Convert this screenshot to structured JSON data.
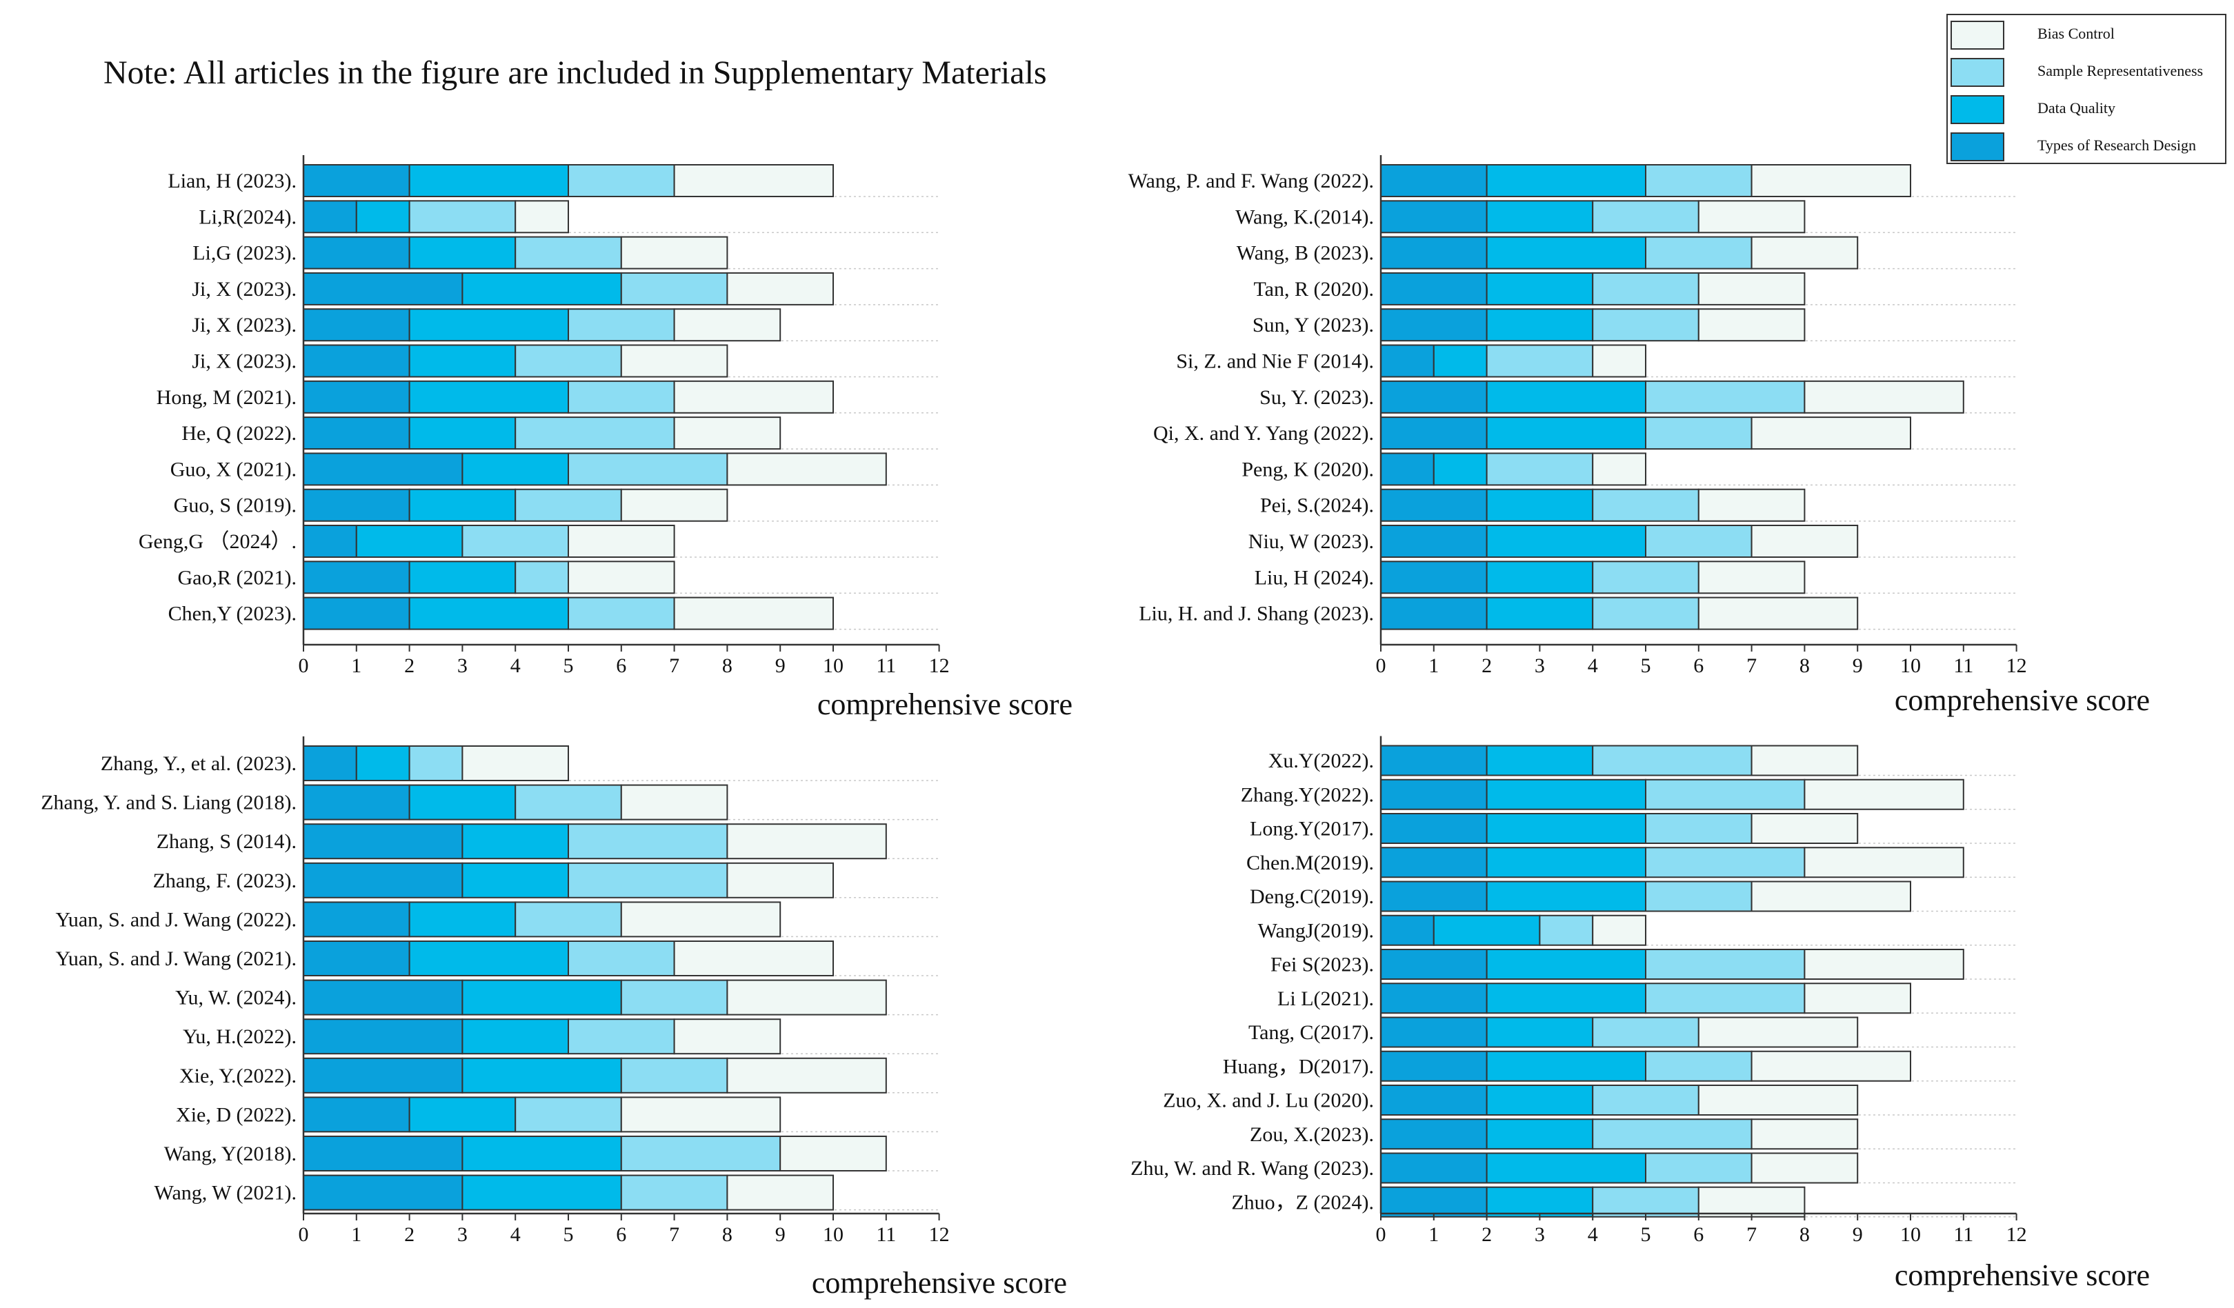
{
  "note": "Note: All articles in the figure are included in Supplementary Materials",
  "colors": {
    "Types of Research Design": "#0aa1dc",
    "Data Quality": "#00baea",
    "Sample Representativeness": "#8cddf3",
    "Bias Control": "#f0f8f5"
  },
  "chart_data": [
    {
      "type": "bar",
      "orientation": "horizontal",
      "stacked": true,
      "xlabel": "comprehensive score",
      "xlim": [
        0,
        12
      ],
      "xticks": [
        0,
        1,
        2,
        3,
        4,
        5,
        6,
        7,
        8,
        9,
        10,
        11,
        12
      ],
      "legend": [
        "Bias Control",
        "Sample Representativeness",
        "Data Quality",
        "Types of Research Design"
      ],
      "legend_position": "top-right",
      "categories": [
        "Lian, H (2023).",
        "Li,R(2024).",
        "Li,G (2023).",
        "Ji, X (2023).",
        "Ji, X (2023).",
        "Ji, X (2023).",
        "Hong, M (2021).",
        "He, Q (2022).",
        "Guo, X (2021).",
        "Guo, S (2019).",
        "Geng,G （2024）.",
        "Gao,R (2021).",
        "Chen,Y (2023)."
      ],
      "series": [
        {
          "name": "Types of Research Design",
          "values": [
            2,
            1,
            2,
            3,
            2,
            2,
            2,
            2,
            3,
            2,
            1,
            2,
            2
          ]
        },
        {
          "name": "Data Quality",
          "values": [
            3,
            1,
            2,
            3,
            3,
            2,
            3,
            2,
            2,
            2,
            2,
            2,
            3
          ]
        },
        {
          "name": "Sample Representativeness",
          "values": [
            2,
            2,
            2,
            2,
            2,
            2,
            2,
            3,
            3,
            2,
            2,
            1,
            2
          ]
        },
        {
          "name": "Bias Control",
          "values": [
            3,
            1,
            2,
            2,
            2,
            2,
            3,
            2,
            3,
            2,
            2,
            2,
            3
          ]
        }
      ]
    },
    {
      "type": "bar",
      "orientation": "horizontal",
      "stacked": true,
      "xlabel": "comprehensive score",
      "xlim": [
        0,
        12
      ],
      "xticks": [
        0,
        1,
        2,
        3,
        4,
        5,
        6,
        7,
        8,
        9,
        10,
        11,
        12
      ],
      "categories": [
        "Wang, P. and F. Wang (2022).",
        "Wang, K.(2014).",
        "Wang, B (2023).",
        "Tan, R (2020).",
        "Sun, Y (2023).",
        "Si, Z. and  Nie F (2014).",
        "Su, Y. (2023).",
        "Qi, X. and Y. Yang (2022).",
        "Peng, K (2020).",
        "Pei, S.(2024).",
        "Niu, W (2023).",
        "Liu, H (2024).",
        "Liu, H. and J. Shang (2023)."
      ],
      "series": [
        {
          "name": "Types of Research Design",
          "values": [
            2,
            2,
            2,
            2,
            2,
            1,
            2,
            2,
            1,
            2,
            2,
            2,
            2
          ]
        },
        {
          "name": "Data Quality",
          "values": [
            3,
            2,
            3,
            2,
            2,
            1,
            3,
            3,
            1,
            2,
            3,
            2,
            2
          ]
        },
        {
          "name": "Sample Representativeness",
          "values": [
            2,
            2,
            2,
            2,
            2,
            2,
            3,
            2,
            2,
            2,
            2,
            2,
            2
          ]
        },
        {
          "name": "Bias Control",
          "values": [
            3,
            2,
            2,
            2,
            2,
            1,
            3,
            3,
            1,
            2,
            2,
            2,
            3
          ]
        }
      ]
    },
    {
      "type": "bar",
      "orientation": "horizontal",
      "stacked": true,
      "xlabel": "comprehensive score",
      "xlim": [
        0,
        12
      ],
      "xticks": [
        0,
        1,
        2,
        3,
        4,
        5,
        6,
        7,
        8,
        9,
        10,
        11,
        12
      ],
      "categories": [
        "Zhang, Y., et al. (2023).",
        "Zhang, Y. and S. Liang (2018).",
        "Zhang, S (2014).",
        "Zhang, F. (2023).",
        "Yuan, S. and J. Wang (2022).",
        "Yuan, S. and J. Wang (2021).",
        "Yu, W. (2024).",
        "Yu, H.(2022).",
        "Xie, Y.(2022).",
        "Xie, D (2022).",
        "Wang, Y(2018).",
        "Wang, W (2021)."
      ],
      "series": [
        {
          "name": "Types of Research Design",
          "values": [
            1,
            2,
            3,
            3,
            2,
            2,
            3,
            3,
            3,
            2,
            3,
            3
          ]
        },
        {
          "name": "Data Quality",
          "values": [
            1,
            2,
            2,
            2,
            2,
            3,
            3,
            2,
            3,
            2,
            3,
            3
          ]
        },
        {
          "name": "Sample Representativeness",
          "values": [
            1,
            2,
            3,
            3,
            2,
            2,
            2,
            2,
            2,
            2,
            3,
            2
          ]
        },
        {
          "name": "Bias Control",
          "values": [
            2,
            2,
            3,
            2,
            3,
            3,
            3,
            2,
            3,
            3,
            2,
            2
          ]
        }
      ]
    },
    {
      "type": "bar",
      "orientation": "horizontal",
      "stacked": true,
      "xlabel": "comprehensive score",
      "xlim": [
        0,
        12
      ],
      "xticks": [
        0,
        1,
        2,
        3,
        4,
        5,
        6,
        7,
        8,
        9,
        10,
        11,
        12
      ],
      "categories": [
        "Xu.Y(2022).",
        "Zhang.Y(2022).",
        "Long.Y(2017).",
        "Chen.M(2019).",
        "Deng.C(2019).",
        "WangJ(2019).",
        "Fei S(2023).",
        "Li L(2021).",
        "Tang, C(2017).",
        "Huang，D(2017).",
        "Zuo, X. and J. Lu (2020).",
        "Zou, X.(2023).",
        "Zhu, W. and R. Wang (2023).",
        "Zhuo，Z (2024)."
      ],
      "series": [
        {
          "name": "Types of Research Design",
          "values": [
            2,
            2,
            2,
            2,
            2,
            1,
            2,
            2,
            2,
            2,
            2,
            2,
            2,
            2
          ]
        },
        {
          "name": "Data Quality",
          "values": [
            2,
            3,
            3,
            3,
            3,
            2,
            3,
            3,
            2,
            3,
            2,
            2,
            3,
            2
          ]
        },
        {
          "name": "Sample Representativeness",
          "values": [
            3,
            3,
            2,
            3,
            2,
            1,
            3,
            3,
            2,
            2,
            2,
            3,
            2,
            2
          ]
        },
        {
          "name": "Bias Control",
          "values": [
            2,
            3,
            2,
            3,
            3,
            1,
            3,
            2,
            3,
            3,
            3,
            2,
            2,
            2
          ]
        }
      ]
    }
  ]
}
